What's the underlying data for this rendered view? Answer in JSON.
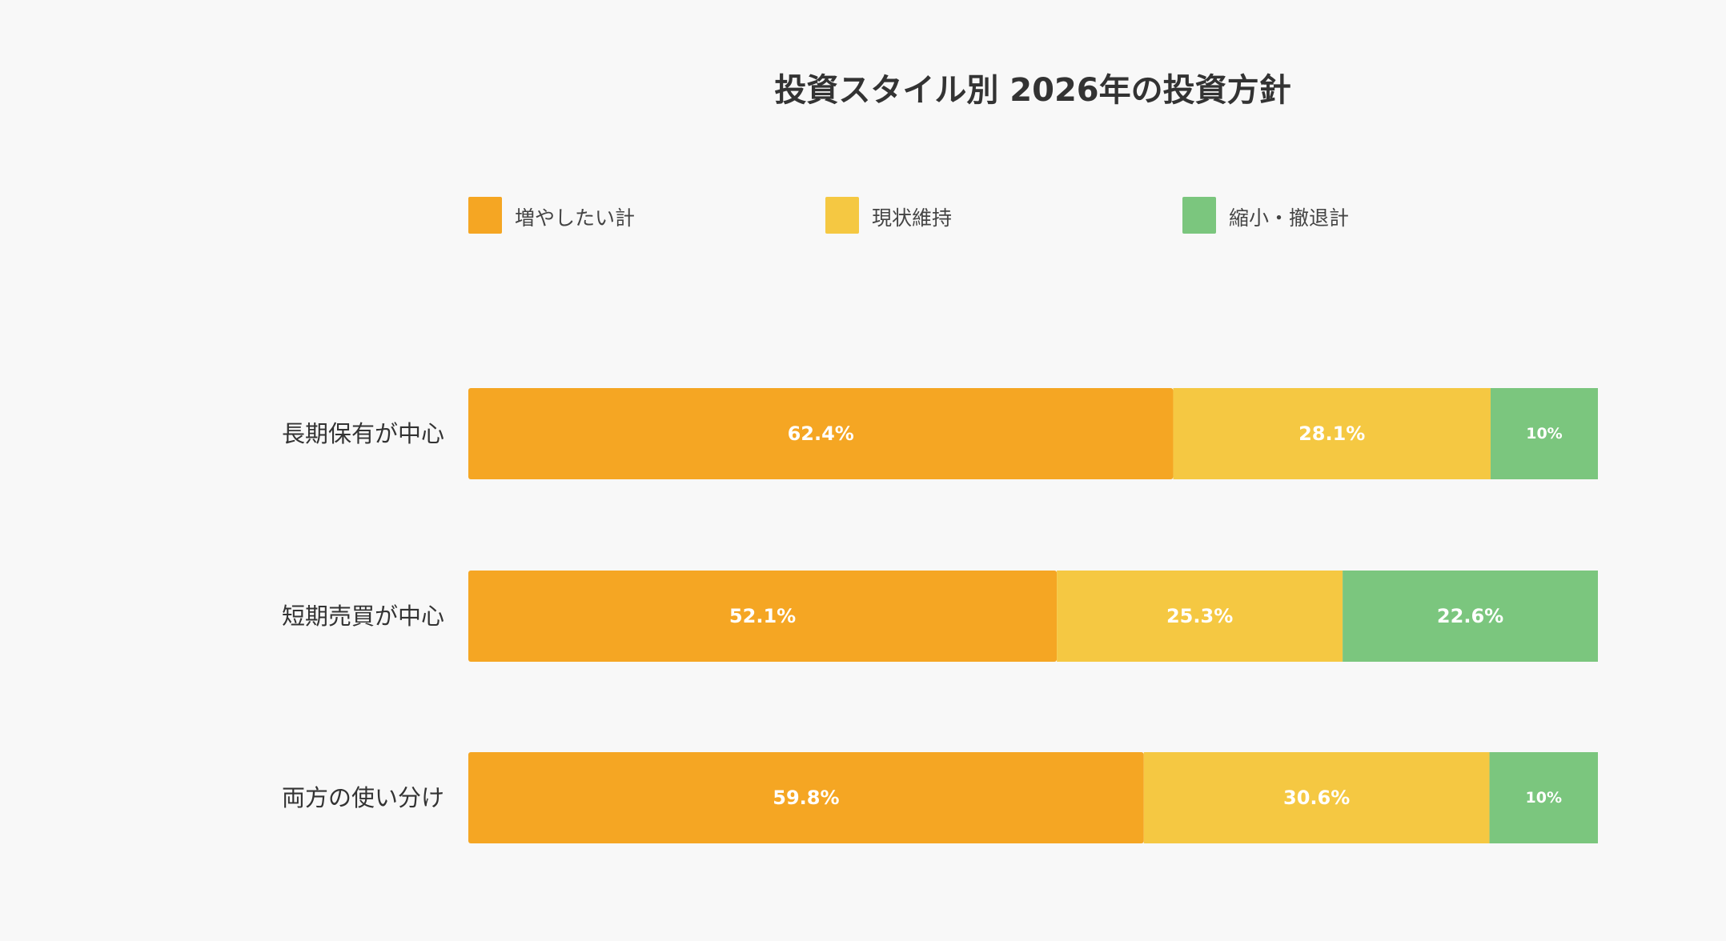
{
  "chart_data": {
    "type": "bar",
    "orientation": "horizontal",
    "stacked": true,
    "title": "投資スタイル別 2026年の投資方針",
    "categories": [
      "長期保有が中心",
      "短期売買が中心",
      "両方の使い分け"
    ],
    "series": [
      {
        "name": "増やしたい計",
        "color": "#f5a623",
        "values": [
          62.4,
          52.1,
          59.8
        ],
        "labels": [
          "62.4%",
          "52.1%",
          "59.8%"
        ]
      },
      {
        "name": "現状維持",
        "color": "#f5c842",
        "values": [
          28.1,
          25.3,
          30.6
        ],
        "labels": [
          "28.1%",
          "25.3%",
          "30.6%"
        ]
      },
      {
        "name": "縮小・撤退計",
        "color": "#7bc67e",
        "values": [
          9.5,
          22.6,
          9.6
        ],
        "labels": [
          "10%",
          "22.6%",
          "10%"
        ]
      }
    ],
    "xlim": [
      0,
      100
    ],
    "grid": false,
    "legend_position": "top"
  }
}
